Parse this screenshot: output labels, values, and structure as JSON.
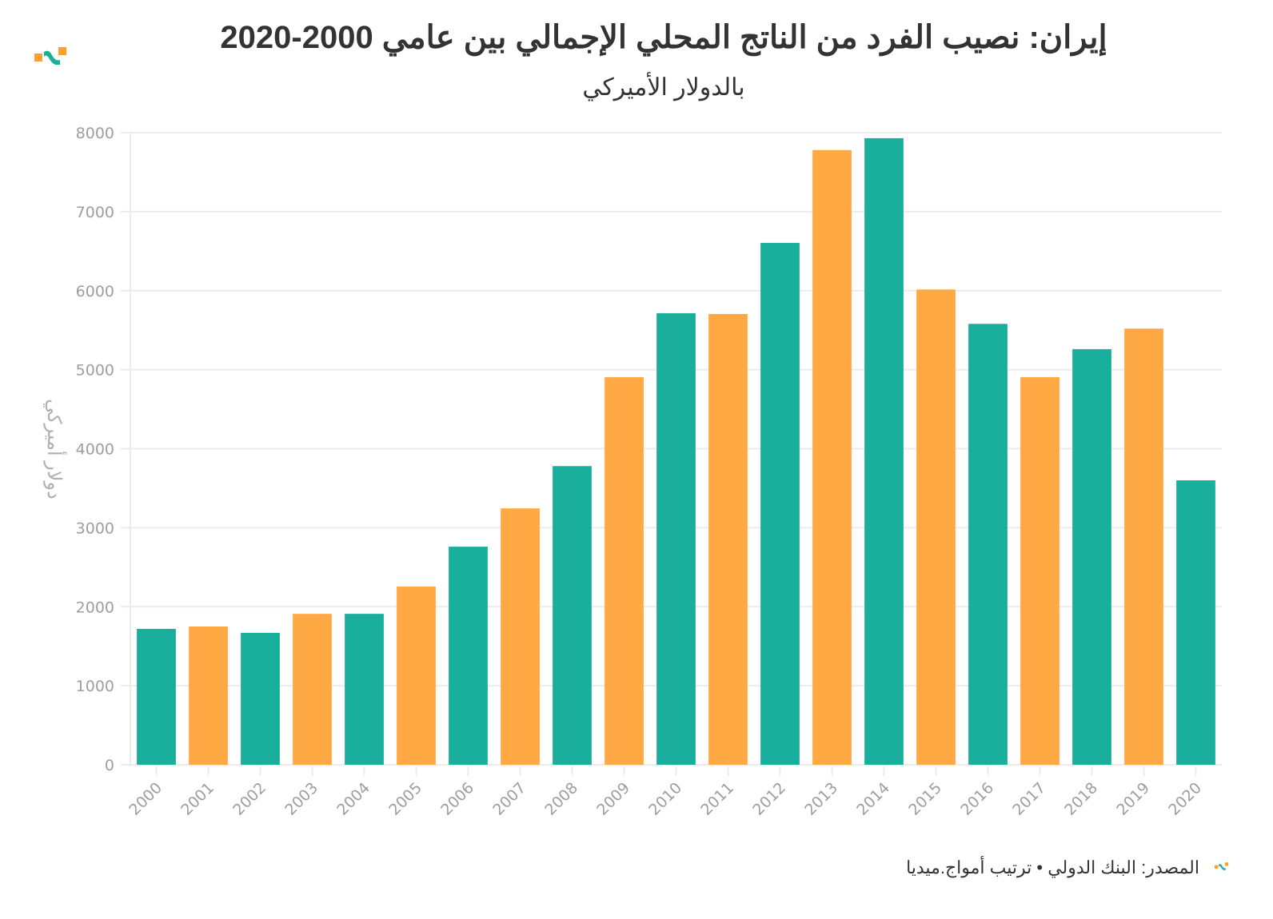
{
  "header": {
    "title": "إيران: نصيب الفرد من الناتج المحلي الإجمالي بين عامي 2000-2020",
    "subtitle": "بالدولار الأميركي",
    "logo_icon": "brand-wave-logo"
  },
  "footer": {
    "source_text": "المصدر: البنك الدولي • ترتيب أمواج.ميديا",
    "logo_icon": "brand-wave-logo-small"
  },
  "colors": {
    "teal": "#1aaf9c",
    "orange": "#ffa945",
    "grid": "#ebebeb",
    "tick_text": "#9e9e9e",
    "title_text": "#333333"
  },
  "chart_data": {
    "type": "bar",
    "title": "إيران: نصيب الفرد من الناتج المحلي الإجمالي بين عامي 2000-2020",
    "subtitle": "بالدولار الأميركي",
    "xlabel": "",
    "ylabel": "دولار أميركي",
    "categories": [
      "2000",
      "2001",
      "2002",
      "2003",
      "2004",
      "2005",
      "2006",
      "2007",
      "2008",
      "2009",
      "2010",
      "2011",
      "2012",
      "2013",
      "2014",
      "2015",
      "2016",
      "2017",
      "2018",
      "2019",
      "2020"
    ],
    "values": [
      1720,
      1750,
      1670,
      1910,
      1910,
      2255,
      2760,
      3245,
      3780,
      4905,
      5715,
      5705,
      6605,
      7780,
      7930,
      6015,
      5580,
      4905,
      5260,
      5520,
      3600
    ],
    "bar_colors": [
      "teal",
      "orange",
      "teal",
      "orange",
      "teal",
      "orange",
      "teal",
      "orange",
      "teal",
      "orange",
      "teal",
      "orange",
      "teal",
      "orange",
      "teal",
      "orange",
      "teal",
      "orange",
      "teal",
      "orange",
      "teal"
    ],
    "ylim": [
      0,
      8000
    ],
    "yticks": [
      0,
      1000,
      2000,
      3000,
      4000,
      5000,
      6000,
      7000,
      8000
    ],
    "grid": true,
    "legend": "none",
    "xtick_rotation": "-45 degrees"
  }
}
